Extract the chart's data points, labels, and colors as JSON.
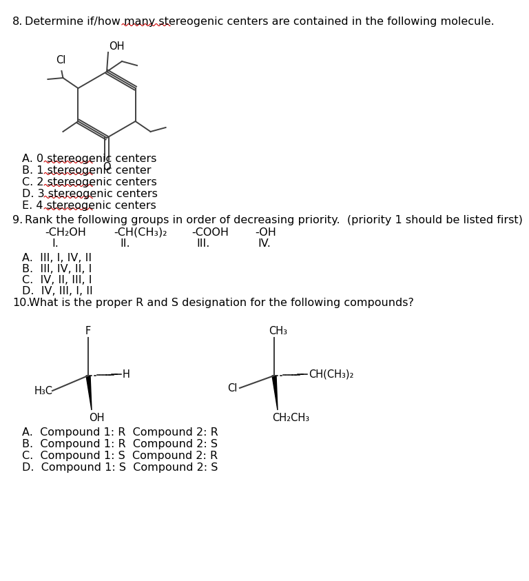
{
  "bg_color": "#ffffff",
  "text_color": "#000000",
  "red_underline_color": "#cc0000",
  "q8_choices": [
    "A. 0 stereogenic centers",
    "B. 1 stereogenic center",
    "C. 2 stereogenic centers",
    "D. 3 stereogenic centers",
    "E. 4 stereogenic centers"
  ],
  "q9_text": "Rank the following groups in order of decreasing priority.  (priority 1 should be listed first)",
  "q9_choices": [
    "A.  III, I, IV, II",
    "B.  III, IV, II, I",
    "C.  IV, II, III, I",
    "D.  IV, III, I, II"
  ],
  "q10_text": "What is the proper R and S designation for the following compounds?",
  "q10_choices": [
    "A.  Compound 1: R  Compound 2: R",
    "B.  Compound 1: R  Compound 2: S",
    "C.  Compound 1: S  Compound 2: R",
    "D.  Compound 1: S  Compound 2: S"
  ],
  "mol_color": "#404040",
  "font_size": 11.5
}
